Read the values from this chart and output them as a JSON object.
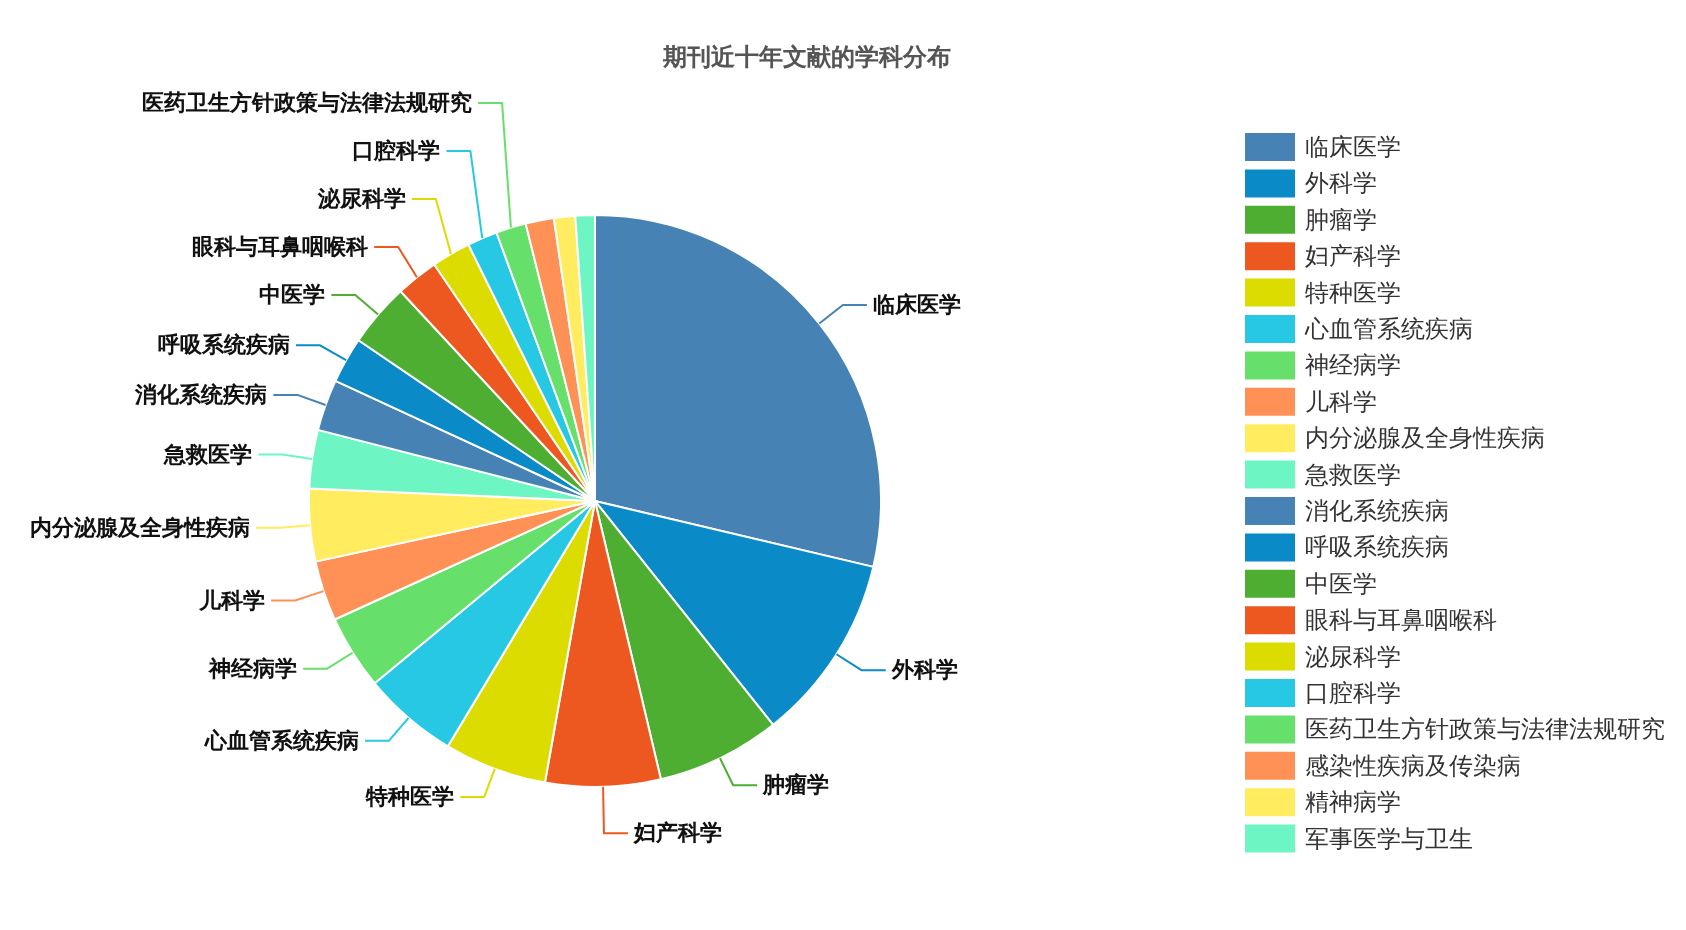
{
  "chart_data": {
    "type": "pie",
    "title": "期刊近十年文献的学科分布",
    "categories": [
      "临床医学",
      "外科学",
      "肿瘤学",
      "妇产科学",
      "特种医学",
      "心血管系统疾病",
      "神经病学",
      "儿科学",
      "内分泌腺及全身性疾病",
      "急救医学",
      "消化系统疾病",
      "呼吸系统疾病",
      "中医学",
      "眼科与耳鼻咽喉科",
      "泌尿科学",
      "口腔科学",
      "医药卫生方针政策与法律法规研究",
      "感染性疾病及传染病",
      "精神病学",
      "军事医学与卫生"
    ],
    "values": [
      28.7,
      10.6,
      7,
      6.5,
      5.8,
      5.4,
      4.2,
      3.4,
      4.1,
      3.3,
      2.9,
      2.6,
      3.6,
      2.4,
      2.2,
      1.7,
      1.7,
      1.6,
      1.2,
      1.1
    ],
    "colors": [
      "#4682b4",
      "#0a8bc8",
      "#4dae32",
      "#ed5820",
      "#dcdc00",
      "#26c8e3",
      "#66e06a",
      "#ff9157",
      "#ffec5f",
      "#6df6c3",
      "#4682b4",
      "#0a8bc8",
      "#4dae32",
      "#ed5820",
      "#dcdc00",
      "#26c8e3",
      "#66e06a",
      "#ff9157",
      "#ffec5f",
      "#6df6c3"
    ],
    "legend": "right"
  }
}
